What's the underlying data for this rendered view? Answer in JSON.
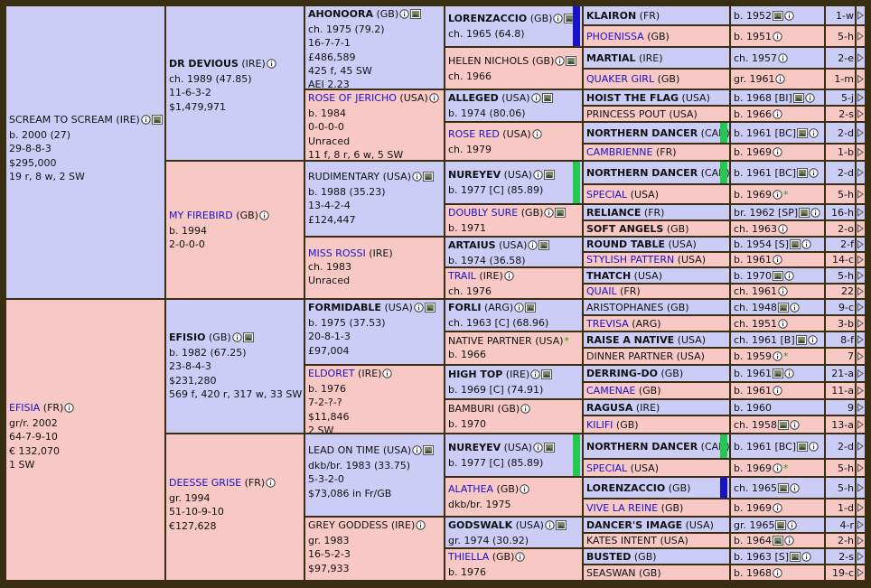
{
  "legend": {
    "info_icon": "info-icon",
    "photo_icon": "photo-icon",
    "star_icon": "star-icon",
    "more_icon": "expand-arrow-icon"
  },
  "colors": {
    "male": "#cbcdf6",
    "female": "#f7c8c4",
    "border": "#3a2e12",
    "link": "#1a12c8",
    "green_bar": "#22c94e",
    "blue_bar": "#1a12c8"
  },
  "gen1": [
    {
      "name": "SCREAM TO SCREAM",
      "country": "(IRE)",
      "lines": [
        "b. 2000 (27)",
        "29-8-8-3",
        "$295,000",
        "19 r, 8 w, 2 SW"
      ]
    },
    {
      "name": "EFISIA",
      "country": "(FR)",
      "lines": [
        "gr/r. 2002",
        "64-7-9-10",
        "€ 132,070",
        "1 SW"
      ]
    }
  ],
  "gen2": [
    {
      "name": "DR DEVIOUS",
      "country": "(IRE)",
      "lines": [
        "ch. 1989 (47.85)",
        "11-6-3-2",
        "$1,479,971"
      ]
    },
    {
      "name": "MY FIREBIRD",
      "country": "(GB)",
      "lines": [
        "b. 1994",
        "2-0-0-0"
      ]
    },
    {
      "name": "EFISIO",
      "country": "(GB)",
      "lines": [
        "b. 1982 (67.25)",
        "23-8-4-3",
        "$231,280",
        "569 f, 420 r, 317 w, 33 SW"
      ]
    },
    {
      "name": "DEESSE GRISE",
      "country": "(FR)",
      "lines": [
        "gr. 1994",
        "51-10-9-10",
        "€127,628"
      ]
    }
  ],
  "gen3": [
    {
      "name": "AHONOORA",
      "country": "(GB)",
      "lines": [
        "ch. 1975 (79.2)",
        "16-7-7-1",
        "£486,589",
        "425 f, 45 SW",
        "AEI 2.23"
      ]
    },
    {
      "name": "ROSE OF JERICHO",
      "country": "(USA)",
      "lines": [
        "b. 1984",
        "0-0-0-0",
        "Unraced",
        "11 f, 8 r, 6 w, 5 SW"
      ]
    },
    {
      "name": "RUDIMENTARY",
      "country": "(USA)",
      "lines": [
        "b. 1988 (35.23)",
        "13-4-2-4",
        "£124,447"
      ]
    },
    {
      "name": "MISS ROSSI",
      "country": "(IRE)",
      "lines": [
        "ch. 1983",
        "Unraced"
      ]
    },
    {
      "name": "FORMIDABLE",
      "country": "(USA)",
      "lines": [
        "b. 1975 (37.53)",
        "20-8-1-3",
        "£97,004"
      ]
    },
    {
      "name": "ELDORET",
      "country": "(IRE)",
      "lines": [
        "b. 1976",
        "7-2-?-?",
        "$11,846",
        "2 SW"
      ]
    },
    {
      "name": "LEAD ON TIME",
      "country": "(USA)",
      "lines": [
        "dkb/br. 1983 (33.75)",
        "5-3-2-0",
        "$73,086 in Fr/GB"
      ]
    },
    {
      "name": "GREY GODDESS",
      "country": "(IRE)",
      "lines": [
        "gr. 1983",
        "16-5-2-3",
        "$97,933"
      ]
    }
  ],
  "gen4": [
    {
      "name": "LORENZACCIO",
      "country": "(GB)",
      "line": "ch. 1965 (64.8)"
    },
    {
      "name": "HELEN NICHOLS",
      "country": "(GB)",
      "line": "ch. 1966"
    },
    {
      "name": "ALLEGED",
      "country": "(USA)",
      "line": "b. 1974 (80.06)"
    },
    {
      "name": "ROSE RED",
      "country": "(USA)",
      "line": "ch. 1979"
    },
    {
      "name": "NUREYEV",
      "country": "(USA)",
      "line": "b. 1977 [C] (85.89)"
    },
    {
      "name": "DOUBLY SURE",
      "country": "(GB)",
      "line": "b. 1971"
    },
    {
      "name": "ARTAIUS",
      "country": "(USA)",
      "line": "b. 1974 (36.58)"
    },
    {
      "name": "TRAIL",
      "country": "(IRE)",
      "line": "ch. 1976"
    },
    {
      "name": "FORLI",
      "country": "(ARG)",
      "line": "ch. 1963 [C] (68.96)"
    },
    {
      "name": "NATIVE PARTNER",
      "country": "(USA)",
      "line": "b. 1966"
    },
    {
      "name": "HIGH TOP",
      "country": "(IRE)",
      "line": "b. 1969 [C] (74.91)"
    },
    {
      "name": "BAMBURI",
      "country": "(GB)",
      "line": "b. 1970"
    },
    {
      "name": "NUREYEV",
      "country": "(USA)",
      "line": "b. 1977 [C] (85.89)"
    },
    {
      "name": "ALATHEA",
      "country": "(GB)",
      "line": "dkb/br. 1975"
    },
    {
      "name": "GODSWALK",
      "country": "(USA)",
      "line": "gr. 1974 (30.92)"
    },
    {
      "name": "THIELLA",
      "country": "(GB)",
      "line": "b. 1976"
    }
  ],
  "gen5": [
    {
      "name": "KLAIRON",
      "country": "(FR)",
      "info": "b. 1952",
      "more": "1-w"
    },
    {
      "name": "PHOENISSA",
      "country": "(GB)",
      "info": "b. 1951",
      "more": "5-h"
    },
    {
      "name": "MARTIAL",
      "country": "(IRE)",
      "info": "ch. 1957",
      "more": "2-e"
    },
    {
      "name": "QUAKER GIRL",
      "country": "(GB)",
      "info": "gr. 1961",
      "more": "1-m"
    },
    {
      "name": "HOIST THE FLAG",
      "country": "(USA)",
      "info": "b. 1968 [BI]",
      "more": "5-j"
    },
    {
      "name": "PRINCESS POUT",
      "country": "(USA)",
      "info": "b. 1966",
      "more": "2-s"
    },
    {
      "name": "NORTHERN DANCER",
      "country": "(CAN)",
      "info": "b. 1961 [BC]",
      "more": "2-d"
    },
    {
      "name": "CAMBRIENNE",
      "country": "(FR)",
      "info": "b. 1969",
      "more": "1-b"
    },
    {
      "name": "NORTHERN DANCER",
      "country": "(CAN)",
      "info": "b. 1961 [BC]",
      "more": "2-d"
    },
    {
      "name": "SPECIAL",
      "country": "(USA)",
      "info": "b. 1969",
      "more": "5-h"
    },
    {
      "name": "RELIANCE",
      "country": "(FR)",
      "info": "br. 1962 [SP]",
      "more": "16-h"
    },
    {
      "name": "SOFT ANGELS",
      "country": "(GB)",
      "info": "ch. 1963",
      "more": "2-o"
    },
    {
      "name": "ROUND TABLE",
      "country": "(USA)",
      "info": "b. 1954 [S]",
      "more": "2-f"
    },
    {
      "name": "STYLISH PATTERN",
      "country": "(USA)",
      "info": "b. 1961",
      "more": "14-c"
    },
    {
      "name": "THATCH",
      "country": "(USA)",
      "info": "b. 1970",
      "more": "5-h"
    },
    {
      "name": "QUAIL",
      "country": "(FR)",
      "info": "ch. 1961",
      "more": "22"
    },
    {
      "name": "ARISTOPHANES",
      "country": "(GB)",
      "info": "ch. 1948",
      "more": "9-c"
    },
    {
      "name": "TREVISA",
      "country": "(ARG)",
      "info": "ch. 1951",
      "more": "3-b"
    },
    {
      "name": "RAISE A NATIVE",
      "country": "(USA)",
      "info": "ch. 1961 [B]",
      "more": "8-f"
    },
    {
      "name": "DINNER PARTNER",
      "country": "(USA)",
      "info": "b. 1959",
      "more": "7"
    },
    {
      "name": "DERRING-DO",
      "country": "(GB)",
      "info": "b. 1961",
      "more": "21-a"
    },
    {
      "name": "CAMENAE",
      "country": "(GB)",
      "info": "b. 1961",
      "more": "11-a"
    },
    {
      "name": "RAGUSA",
      "country": "(IRE)",
      "info": "b. 1960",
      "more": "9"
    },
    {
      "name": "KILIFI",
      "country": "(GB)",
      "info": "ch. 1958",
      "more": "13-a"
    },
    {
      "name": "NORTHERN DANCER",
      "country": "(CAN)",
      "info": "b. 1961 [BC]",
      "more": "2-d"
    },
    {
      "name": "SPECIAL",
      "country": "(USA)",
      "info": "b. 1969",
      "more": "5-h"
    },
    {
      "name": "LORENZACCIO",
      "country": "(GB)",
      "info": "ch. 1965",
      "more": "5-h"
    },
    {
      "name": "VIVE LA REINE",
      "country": "(GB)",
      "info": "b. 1969",
      "more": "1-d"
    },
    {
      "name": "DANCER'S IMAGE",
      "country": "(USA)",
      "info": "gr. 1965",
      "more": "4-r"
    },
    {
      "name": "KATES INTENT",
      "country": "(USA)",
      "info": "b. 1964",
      "more": "2-h"
    },
    {
      "name": "BUSTED",
      "country": "(GB)",
      "info": "b. 1963 [S]",
      "more": "2-s"
    },
    {
      "name": "SEASWAN",
      "country": "(GB)",
      "info": "b. 1968",
      "more": "19-c"
    }
  ]
}
